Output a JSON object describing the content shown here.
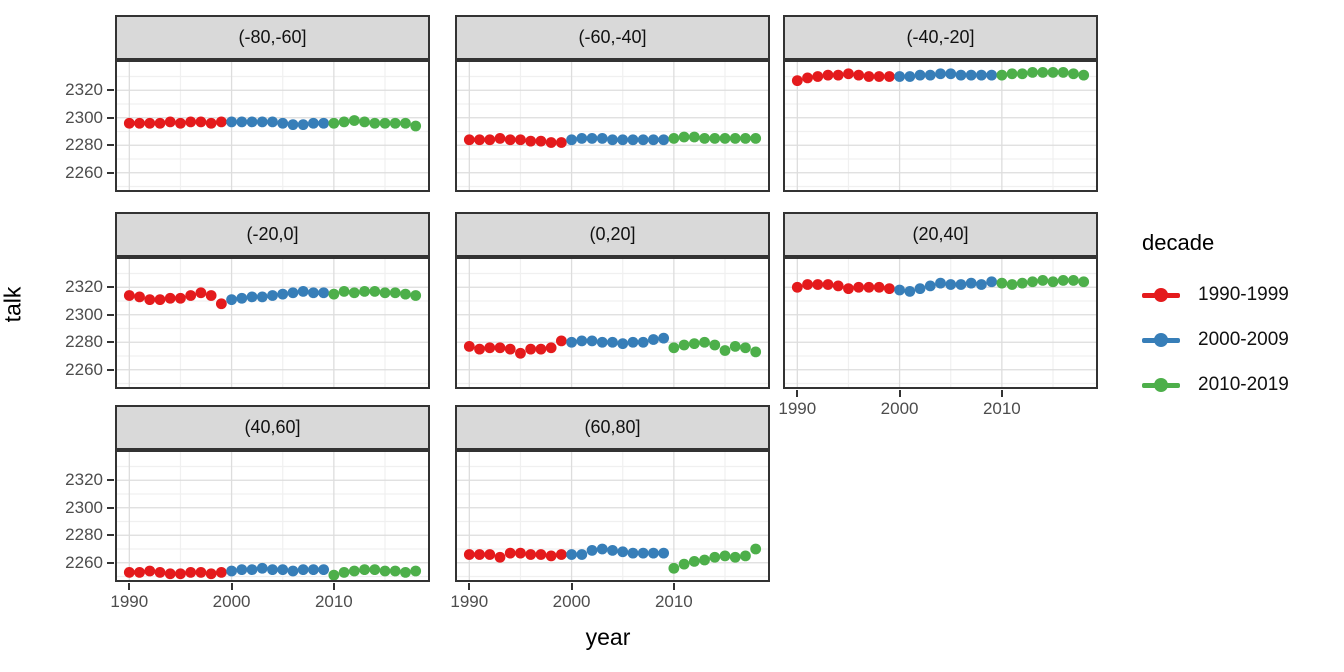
{
  "chart_data": {
    "type": "scatter",
    "title": "",
    "xlabel": "year",
    "ylabel": "talk",
    "facet_layout": {
      "ncol": 3,
      "nrow": 3,
      "empty_cells": [
        "row3-col3"
      ]
    },
    "axes": {
      "x_ticks": [
        1990,
        2000,
        2010
      ],
      "x_minor": [
        1995,
        2005,
        2015
      ],
      "x_range": [
        1988.6,
        2019.4
      ],
      "y_ticks": [
        2260,
        2280,
        2300,
        2320
      ],
      "y_minor": [
        2250,
        2270,
        2290,
        2310,
        2330
      ],
      "y_range": [
        2246,
        2342
      ],
      "grid": true
    },
    "theme": {
      "strip_fill": "#D9D9D9",
      "panel_border": "#333333",
      "grid_major": "#DDDDDD",
      "grid_minor": "#F0F0F0",
      "axis_text": "#4d4d4d",
      "point_radius": 5.4
    },
    "legend": {
      "title": "decade",
      "position": "right",
      "items": [
        {
          "label": "1990-1999",
          "color": "#E41A1C"
        },
        {
          "label": "2000-2009",
          "color": "#377EB8"
        },
        {
          "label": "2010-2019",
          "color": "#4DAF4A"
        }
      ]
    },
    "facets": [
      {
        "label": "(-80,-60]",
        "series": [
          {
            "decade": "1990-1999",
            "start_year": 1990,
            "values": [
              2296,
              2296,
              2296,
              2296,
              2297,
              2296,
              2297,
              2297,
              2296,
              2297
            ]
          },
          {
            "decade": "2000-2009",
            "start_year": 2000,
            "values": [
              2297,
              2297,
              2297,
              2297,
              2297,
              2296,
              2295,
              2295,
              2296,
              2296
            ]
          },
          {
            "decade": "2010-2019",
            "start_year": 2010,
            "values": [
              2296,
              2297,
              2298,
              2297,
              2296,
              2296,
              2296,
              2296,
              2294
            ]
          }
        ]
      },
      {
        "label": "(-60,-40]",
        "series": [
          {
            "decade": "1990-1999",
            "start_year": 1990,
            "values": [
              2284,
              2284,
              2284,
              2285,
              2284,
              2284,
              2283,
              2283,
              2282,
              2282
            ]
          },
          {
            "decade": "2000-2009",
            "start_year": 2000,
            "values": [
              2284,
              2285,
              2285,
              2285,
              2284,
              2284,
              2284,
              2284,
              2284,
              2284
            ]
          },
          {
            "decade": "2010-2019",
            "start_year": 2010,
            "values": [
              2285,
              2286,
              2286,
              2285,
              2285,
              2285,
              2285,
              2285,
              2285
            ]
          }
        ]
      },
      {
        "label": "(-40,-20]",
        "series": [
          {
            "decade": "1990-1999",
            "start_year": 1990,
            "values": [
              2327,
              2329,
              2330,
              2331,
              2331,
              2332,
              2331,
              2330,
              2330,
              2330
            ]
          },
          {
            "decade": "2000-2009",
            "start_year": 2000,
            "values": [
              2330,
              2330,
              2331,
              2331,
              2332,
              2332,
              2331,
              2331,
              2331,
              2331
            ]
          },
          {
            "decade": "2010-2019",
            "start_year": 2010,
            "values": [
              2331,
              2332,
              2332,
              2333,
              2333,
              2333,
              2333,
              2332,
              2331
            ]
          }
        ]
      },
      {
        "label": "(-20,0]",
        "series": [
          {
            "decade": "1990-1999",
            "start_year": 1990,
            "values": [
              2314,
              2313,
              2311,
              2311,
              2312,
              2312,
              2314,
              2316,
              2314,
              2308
            ]
          },
          {
            "decade": "2000-2009",
            "start_year": 2000,
            "values": [
              2311,
              2312,
              2313,
              2313,
              2314,
              2315,
              2316,
              2317,
              2316,
              2316
            ]
          },
          {
            "decade": "2010-2019",
            "start_year": 2010,
            "values": [
              2315,
              2317,
              2316,
              2317,
              2317,
              2316,
              2316,
              2315,
              2314
            ]
          }
        ]
      },
      {
        "label": "(0,20]",
        "series": [
          {
            "decade": "1990-1999",
            "start_year": 1990,
            "values": [
              2277,
              2275,
              2276,
              2276,
              2275,
              2272,
              2275,
              2275,
              2276,
              2281
            ]
          },
          {
            "decade": "2000-2009",
            "start_year": 2000,
            "values": [
              2280,
              2281,
              2281,
              2280,
              2280,
              2279,
              2280,
              2280,
              2282,
              2283
            ]
          },
          {
            "decade": "2010-2019",
            "start_year": 2010,
            "values": [
              2276,
              2278,
              2279,
              2280,
              2278,
              2274,
              2277,
              2276,
              2273
            ]
          }
        ]
      },
      {
        "label": "(20,40]",
        "series": [
          {
            "decade": "1990-1999",
            "start_year": 1990,
            "values": [
              2320,
              2322,
              2322,
              2322,
              2321,
              2319,
              2320,
              2320,
              2320,
              2319
            ]
          },
          {
            "decade": "2000-2009",
            "start_year": 2000,
            "values": [
              2318,
              2317,
              2319,
              2321,
              2323,
              2322,
              2322,
              2323,
              2322,
              2324
            ]
          },
          {
            "decade": "2010-2019",
            "start_year": 2010,
            "values": [
              2323,
              2322,
              2323,
              2324,
              2325,
              2324,
              2325,
              2325,
              2324
            ]
          }
        ]
      },
      {
        "label": "(40,60]",
        "series": [
          {
            "decade": "1990-1999",
            "start_year": 1990,
            "values": [
              2253,
              2253,
              2254,
              2253,
              2252,
              2252,
              2253,
              2253,
              2252,
              2253
            ]
          },
          {
            "decade": "2000-2009",
            "start_year": 2000,
            "values": [
              2254,
              2255,
              2255,
              2256,
              2255,
              2255,
              2254,
              2255,
              2255,
              2255
            ]
          },
          {
            "decade": "2010-2019",
            "start_year": 2010,
            "values": [
              2251,
              2253,
              2254,
              2255,
              2255,
              2254,
              2254,
              2253,
              2254
            ]
          }
        ]
      },
      {
        "label": "(60,80]",
        "series": [
          {
            "decade": "1990-1999",
            "start_year": 1990,
            "values": [
              2266,
              2266,
              2266,
              2264,
              2267,
              2267,
              2266,
              2266,
              2265,
              2266
            ]
          },
          {
            "decade": "2000-2009",
            "start_year": 2000,
            "values": [
              2266,
              2266,
              2269,
              2270,
              2269,
              2268,
              2267,
              2267,
              2267,
              2267
            ]
          },
          {
            "decade": "2010-2019",
            "start_year": 2010,
            "values": [
              2256,
              2259,
              2261,
              2262,
              2264,
              2265,
              2264,
              2265,
              2270
            ]
          }
        ]
      }
    ]
  }
}
